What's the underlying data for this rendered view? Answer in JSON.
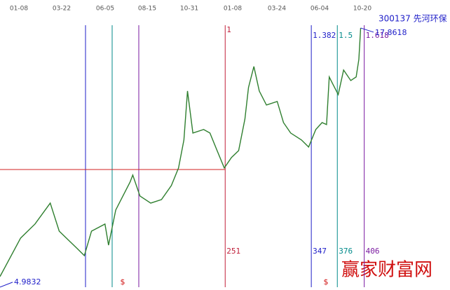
{
  "chart_data": {
    "type": "line",
    "title": "300137 先河环保",
    "watermark": "赢家财富网",
    "date_labels": [
      "01-08",
      "03-22",
      "06-05",
      "08-15",
      "10-31",
      "01-08",
      "03-24",
      "06-04",
      "10-20"
    ],
    "x": [
      0,
      23,
      39,
      56,
      66,
      78,
      86,
      94,
      102,
      117,
      121,
      129,
      137,
      145,
      148,
      156,
      168,
      180,
      191,
      199,
      205,
      209,
      215,
      227,
      234,
      242,
      250,
      258,
      266,
      273,
      277,
      283,
      289,
      297,
      309,
      316,
      324,
      336,
      344,
      352,
      359,
      364,
      367,
      371,
      377,
      383,
      391,
      397,
      400,
      402
    ],
    "series": [
      {
        "name": "300137",
        "color": "#2f7f2f",
        "values": [
          5.27,
          7.22,
          7.93,
          8.99,
          7.57,
          7.04,
          6.69,
          6.33,
          7.57,
          7.93,
          6.86,
          8.64,
          9.35,
          10.06,
          10.41,
          9.35,
          8.99,
          9.17,
          9.88,
          10.77,
          12.19,
          14.67,
          12.54,
          12.72,
          12.54,
          11.65,
          10.77,
          11.3,
          11.65,
          13.25,
          14.85,
          15.91,
          14.67,
          13.96,
          14.14,
          13.07,
          12.54,
          12.19,
          11.83,
          12.72,
          13.07,
          12.97,
          15.38,
          15.02,
          14.49,
          15.73,
          15.2,
          15.38,
          16.27,
          17.86
        ]
      }
    ],
    "low": 4.9832,
    "high": 17.8618,
    "fib_lines": [
      {
        "ratio": 1,
        "bar": 251,
        "color": "#c0203a"
      },
      {
        "ratio": 1.382,
        "bar": 347,
        "color": "#1c1cc8"
      },
      {
        "ratio": 1.5,
        "bar": 376,
        "color": "#008a8a"
      },
      {
        "ratio": 1.618,
        "bar": 406,
        "color": "#7a1aa0"
      }
    ],
    "markers": [
      "$",
      "$"
    ],
    "xlim": [
      0,
      501.6
    ],
    "ylim": [
      4.73,
      18.57
    ]
  }
}
